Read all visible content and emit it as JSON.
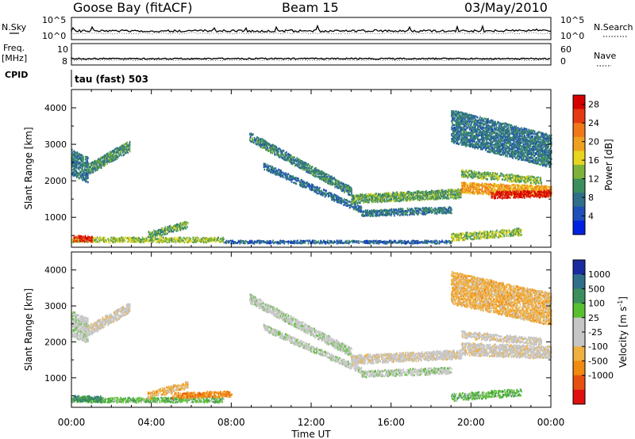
{
  "header": {
    "station": "Goose Bay (fitACF)",
    "beam": "Beam 15",
    "date": "03/May/2010"
  },
  "side_labels": {
    "nsky": "N.Sky",
    "nsearch": "N.Search",
    "freq": "Freq.",
    "freq_unit": "[MHz]",
    "nave": "Nave",
    "cpid": "CPID",
    "program": "tau (fast) 503"
  },
  "noise_panel": {
    "left_ticks": [
      "10^5",
      "10^0"
    ],
    "right_ticks": [
      "10^5",
      "10^0"
    ]
  },
  "freq_panel": {
    "left_ticks": [
      "10",
      "8"
    ],
    "right_ticks": [
      "60",
      "0"
    ]
  },
  "colors": {
    "power_scale": [
      "#0022e0",
      "#1f4fb8",
      "#2f6f8a",
      "#3c8f5c",
      "#7fb23a",
      "#e8d520",
      "#f0a020",
      "#f07818",
      "#e63a12",
      "#d40000"
    ],
    "velocity_scale": [
      "#1a2aa0",
      "#2f6f8a",
      "#3c8f5c",
      "#58c030",
      "#c6c6c6",
      "#c6c6c6",
      "#f0b040",
      "#f08a10",
      "#e65010",
      "#e01010"
    ],
    "ground_scatter": "#bebebe",
    "noise_trace": "#000000"
  },
  "chart_data": [
    {
      "type": "heatmap",
      "name_panel": "power",
      "title": "Goose Bay (fitACF) Beam 15",
      "xlabel": "Time UT",
      "ylabel": "Slant Range [km]",
      "x_ticks": [
        "00:00",
        "04:00",
        "08:00",
        "12:00",
        "16:00",
        "20:00",
        "00:00"
      ],
      "xlim_hours": [
        0,
        24
      ],
      "y_ticks": [
        "1000",
        "2000",
        "3000",
        "4000"
      ],
      "ylim": [
        180,
        4500
      ],
      "colorbar_label": "Power [dB]",
      "colorbar_ticks": [
        "4",
        "8",
        "12",
        "16",
        "20",
        "24",
        "28"
      ],
      "colorbar_range": [
        0,
        30
      ],
      "features": [
        {
          "kind": "band",
          "start_h": 0.0,
          "end_h": 7.6,
          "y_start": 380,
          "y_end": 380,
          "thickness": 140,
          "level": 14
        },
        {
          "kind": "band",
          "start_h": 7.6,
          "end_h": 19.0,
          "y_start": 320,
          "y_end": 320,
          "thickness": 80,
          "level": 6
        },
        {
          "kind": "band",
          "start_h": 0.1,
          "end_h": 1.0,
          "y_start": 420,
          "y_end": 400,
          "thickness": 160,
          "level": 27
        },
        {
          "kind": "band",
          "start_h": 0.0,
          "end_h": 0.8,
          "y_start": 2500,
          "y_end": 2300,
          "thickness": 700,
          "level": 8
        },
        {
          "kind": "band",
          "start_h": 0.8,
          "end_h": 2.9,
          "y_start": 2300,
          "y_end": 2950,
          "thickness": 300,
          "level": 10
        },
        {
          "kind": "band",
          "start_h": 3.8,
          "end_h": 5.8,
          "y_start": 500,
          "y_end": 800,
          "thickness": 200,
          "level": 12
        },
        {
          "kind": "band",
          "start_h": 8.9,
          "end_h": 14.0,
          "y_start": 3200,
          "y_end": 1700,
          "thickness": 250,
          "level": 9
        },
        {
          "kind": "band",
          "start_h": 9.6,
          "end_h": 14.5,
          "y_start": 2400,
          "y_end": 1200,
          "thickness": 180,
          "level": 7
        },
        {
          "kind": "band",
          "start_h": 14.0,
          "end_h": 19.5,
          "y_start": 1500,
          "y_end": 1650,
          "thickness": 250,
          "level": 12
        },
        {
          "kind": "band",
          "start_h": 14.5,
          "end_h": 19.0,
          "y_start": 1100,
          "y_end": 1200,
          "thickness": 180,
          "level": 8
        },
        {
          "kind": "band",
          "start_h": 19.5,
          "end_h": 24.0,
          "y_start": 1800,
          "y_end": 1700,
          "thickness": 300,
          "level": 20
        },
        {
          "kind": "band",
          "start_h": 21.0,
          "end_h": 24.0,
          "y_start": 1600,
          "y_end": 1650,
          "thickness": 200,
          "level": 28
        },
        {
          "kind": "band",
          "start_h": 19.5,
          "end_h": 23.5,
          "y_start": 2200,
          "y_end": 2000,
          "thickness": 200,
          "level": 13
        },
        {
          "kind": "band",
          "start_h": 19.0,
          "end_h": 24.0,
          "y_start": 3500,
          "y_end": 2800,
          "thickness": 900,
          "level": 8
        },
        {
          "kind": "band",
          "start_h": 19.0,
          "end_h": 22.5,
          "y_start": 450,
          "y_end": 600,
          "thickness": 200,
          "level": 14
        }
      ]
    },
    {
      "type": "heatmap",
      "name_panel": "velocity",
      "xlabel": "Time UT",
      "ylabel": "Slant Range [km]",
      "x_ticks": [
        "00:00",
        "04:00",
        "08:00",
        "12:00",
        "16:00",
        "20:00",
        "00:00"
      ],
      "xlim_hours": [
        0,
        24
      ],
      "y_ticks": [
        "1000",
        "2000",
        "3000",
        "4000"
      ],
      "ylim": [
        180,
        4500
      ],
      "colorbar_label": "Velocity [m s^-1]",
      "colorbar_ticks": [
        "1000",
        "500",
        "100",
        "25",
        "-25",
        "-100",
        "-500",
        "-1000"
      ],
      "features": [
        {
          "kind": "band",
          "start_h": 0.0,
          "end_h": 7.6,
          "y_start": 380,
          "y_end": 380,
          "thickness": 140,
          "level": 3
        },
        {
          "kind": "band",
          "start_h": 0.1,
          "end_h": 1.5,
          "y_start": 420,
          "y_end": 400,
          "thickness": 160,
          "level": 2
        },
        {
          "kind": "band",
          "start_h": 5.0,
          "end_h": 8.0,
          "y_start": 500,
          "y_end": 550,
          "thickness": 160,
          "level": 7
        },
        {
          "kind": "band",
          "start_h": 0.0,
          "end_h": 0.8,
          "y_start": 2500,
          "y_end": 2300,
          "thickness": 700,
          "level": 4
        },
        {
          "kind": "band",
          "start_h": 0.8,
          "end_h": 2.9,
          "y_start": 2300,
          "y_end": 2950,
          "thickness": 300,
          "level": 5
        },
        {
          "kind": "band",
          "start_h": 3.8,
          "end_h": 5.8,
          "y_start": 500,
          "y_end": 800,
          "thickness": 200,
          "level": 6
        },
        {
          "kind": "band",
          "start_h": 8.9,
          "end_h": 14.0,
          "y_start": 3200,
          "y_end": 1700,
          "thickness": 250,
          "level": 4
        },
        {
          "kind": "band",
          "start_h": 9.6,
          "end_h": 14.5,
          "y_start": 2400,
          "y_end": 1200,
          "thickness": 180,
          "level": 4
        },
        {
          "kind": "band",
          "start_h": 14.0,
          "end_h": 19.5,
          "y_start": 1500,
          "y_end": 1650,
          "thickness": 250,
          "level": 5
        },
        {
          "kind": "band",
          "start_h": 14.5,
          "end_h": 19.0,
          "y_start": 1100,
          "y_end": 1200,
          "thickness": 180,
          "level": 4
        },
        {
          "kind": "band",
          "start_h": 19.5,
          "end_h": 24.0,
          "y_start": 1800,
          "y_end": 1700,
          "thickness": 350,
          "level": 5
        },
        {
          "kind": "band",
          "start_h": 19.5,
          "end_h": 23.5,
          "y_start": 2200,
          "y_end": 2000,
          "thickness": 200,
          "level": 5
        },
        {
          "kind": "band",
          "start_h": 19.0,
          "end_h": 24.0,
          "y_start": 3500,
          "y_end": 2900,
          "thickness": 900,
          "level": 6
        },
        {
          "kind": "band",
          "start_h": 19.0,
          "end_h": 22.5,
          "y_start": 450,
          "y_end": 600,
          "thickness": 200,
          "level": 3
        }
      ]
    }
  ]
}
